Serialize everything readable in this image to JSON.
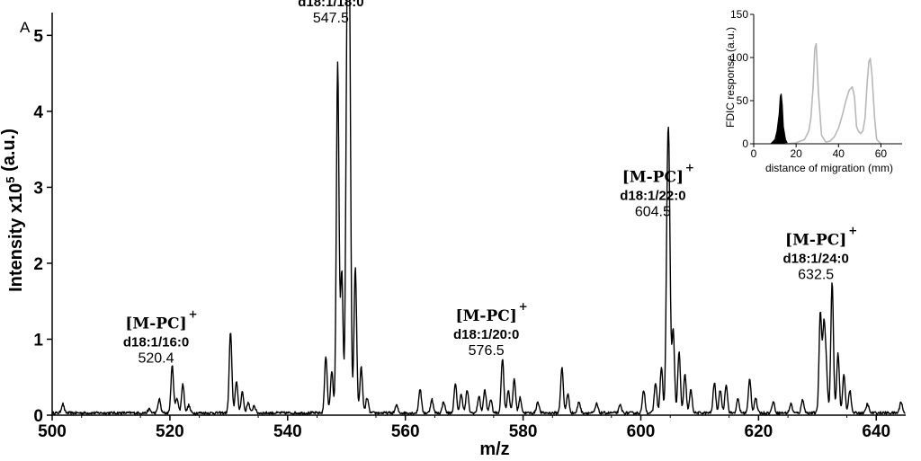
{
  "panel_label": "A",
  "chart_data": [
    {
      "type": "line",
      "xlabel": "m/z",
      "ylabel": "Intensity x10⁵ (a.u.)",
      "xlim": [
        500,
        645
      ],
      "ylim": [
        0,
        5.3
      ],
      "xticks": [
        500,
        520,
        540,
        560,
        580,
        600,
        620,
        640
      ],
      "yticks": [
        0,
        1,
        2,
        3,
        4,
        5
      ],
      "grid": false,
      "peaks": [
        {
          "x": 501.8,
          "y": 0.12
        },
        {
          "x": 516.5,
          "y": 0.05
        },
        {
          "x": 518.2,
          "y": 0.18
        },
        {
          "x": 520.4,
          "y": 0.62
        },
        {
          "x": 521.2,
          "y": 0.2
        },
        {
          "x": 522.2,
          "y": 0.38
        },
        {
          "x": 523.2,
          "y": 0.1
        },
        {
          "x": 530.3,
          "y": 1.07
        },
        {
          "x": 531.3,
          "y": 0.42
        },
        {
          "x": 532.3,
          "y": 0.28
        },
        {
          "x": 533.3,
          "y": 0.14
        },
        {
          "x": 534.3,
          "y": 0.1
        },
        {
          "x": 546.5,
          "y": 0.75
        },
        {
          "x": 547.5,
          "y": 0.55
        },
        {
          "x": 548.5,
          "y": 4.6
        },
        {
          "x": 549.2,
          "y": 1.85
        },
        {
          "x": 550.1,
          "y": 4.72
        },
        {
          "x": 550.5,
          "y": 5.1
        },
        {
          "x": 551.5,
          "y": 1.92
        },
        {
          "x": 552.5,
          "y": 0.6
        },
        {
          "x": 553.5,
          "y": 0.2
        },
        {
          "x": 558.5,
          "y": 0.1
        },
        {
          "x": 562.5,
          "y": 0.32
        },
        {
          "x": 564.5,
          "y": 0.18
        },
        {
          "x": 566.5,
          "y": 0.15
        },
        {
          "x": 568.5,
          "y": 0.38
        },
        {
          "x": 569.5,
          "y": 0.25
        },
        {
          "x": 570.5,
          "y": 0.3
        },
        {
          "x": 572.5,
          "y": 0.22
        },
        {
          "x": 573.5,
          "y": 0.3
        },
        {
          "x": 574.5,
          "y": 0.18
        },
        {
          "x": 576.5,
          "y": 0.72
        },
        {
          "x": 577.5,
          "y": 0.3
        },
        {
          "x": 578.5,
          "y": 0.45
        },
        {
          "x": 579.5,
          "y": 0.2
        },
        {
          "x": 582.5,
          "y": 0.15
        },
        {
          "x": 586.6,
          "y": 0.6
        },
        {
          "x": 587.6,
          "y": 0.25
        },
        {
          "x": 589.5,
          "y": 0.15
        },
        {
          "x": 592.5,
          "y": 0.12
        },
        {
          "x": 596.5,
          "y": 0.1
        },
        {
          "x": 600.5,
          "y": 0.3
        },
        {
          "x": 602.5,
          "y": 0.4
        },
        {
          "x": 603.5,
          "y": 0.6
        },
        {
          "x": 604.5,
          "y": 2.22
        },
        {
          "x": 604.8,
          "y": 2.55
        },
        {
          "x": 605.5,
          "y": 1.1
        },
        {
          "x": 606.5,
          "y": 0.8
        },
        {
          "x": 607.5,
          "y": 0.5
        },
        {
          "x": 608.5,
          "y": 0.3
        },
        {
          "x": 612.5,
          "y": 0.4
        },
        {
          "x": 613.5,
          "y": 0.3
        },
        {
          "x": 614.5,
          "y": 0.38
        },
        {
          "x": 616.5,
          "y": 0.18
        },
        {
          "x": 618.5,
          "y": 0.45
        },
        {
          "x": 619.5,
          "y": 0.2
        },
        {
          "x": 622.5,
          "y": 0.15
        },
        {
          "x": 625.5,
          "y": 0.12
        },
        {
          "x": 627.5,
          "y": 0.18
        },
        {
          "x": 630.5,
          "y": 1.32
        },
        {
          "x": 631.1,
          "y": 1.1
        },
        {
          "x": 631.5,
          "y": 0.55
        },
        {
          "x": 632.5,
          "y": 1.72
        },
        {
          "x": 633.5,
          "y": 0.78
        },
        {
          "x": 634.5,
          "y": 0.5
        },
        {
          "x": 635.5,
          "y": 0.3
        },
        {
          "x": 638.5,
          "y": 0.12
        },
        {
          "x": 644.2,
          "y": 0.15
        }
      ],
      "annotations": [
        {
          "ion": "M-PC",
          "charge": "+",
          "species": "d18:1/16:0",
          "mz": "520.4",
          "x": 520.4
        },
        {
          "ion": "M-PC",
          "charge": "+",
          "species": "d18:1/18:0",
          "mz": "547.5",
          "x": 550.1
        },
        {
          "ion": "M-PC",
          "charge": "+",
          "species": "d18:1/20:0",
          "mz": "576.5",
          "x": 576.5
        },
        {
          "ion": "M-PC",
          "charge": "+",
          "species": "d18:1/22:0",
          "mz": "604.5",
          "x": 604.8
        },
        {
          "ion": "M-PC",
          "charge": "+",
          "species": "d18:1/24:0",
          "mz": "632.5",
          "x": 632.5
        }
      ]
    },
    {
      "type": "line",
      "xlabel": "distance of migration (mm)",
      "ylabel": "FDIC response (a.u.)",
      "xlim": [
        0,
        70
      ],
      "ylim": [
        0,
        150
      ],
      "xticks": [
        0,
        20,
        40,
        60
      ],
      "yticks": [
        0,
        50,
        100,
        150
      ],
      "series": [
        {
          "color": "#000000",
          "filled": true,
          "x": [
            8,
            10,
            11,
            12,
            12.5,
            13,
            13.5,
            14,
            15,
            16
          ],
          "y": [
            0,
            5,
            15,
            35,
            55,
            58,
            45,
            20,
            5,
            0
          ]
        },
        {
          "color": "#b8b8b8",
          "filled": false,
          "x": [
            15,
            20,
            24,
            26,
            27,
            28,
            28.8,
            29.5,
            30.5,
            32,
            34,
            36,
            38,
            40,
            42,
            43.5,
            45,
            46.5,
            47.5,
            48.5,
            49.5,
            50.5,
            51.5,
            52.5,
            53.5,
            54.3,
            55,
            55.8,
            57,
            58,
            60
          ],
          "y": [
            0,
            1,
            5,
            15,
            30,
            65,
            110,
            116,
            60,
            10,
            2,
            3,
            8,
            18,
            35,
            50,
            62,
            66,
            55,
            20,
            14,
            12,
            15,
            30,
            70,
            95,
            99,
            80,
            30,
            5,
            0
          ]
        }
      ]
    }
  ]
}
